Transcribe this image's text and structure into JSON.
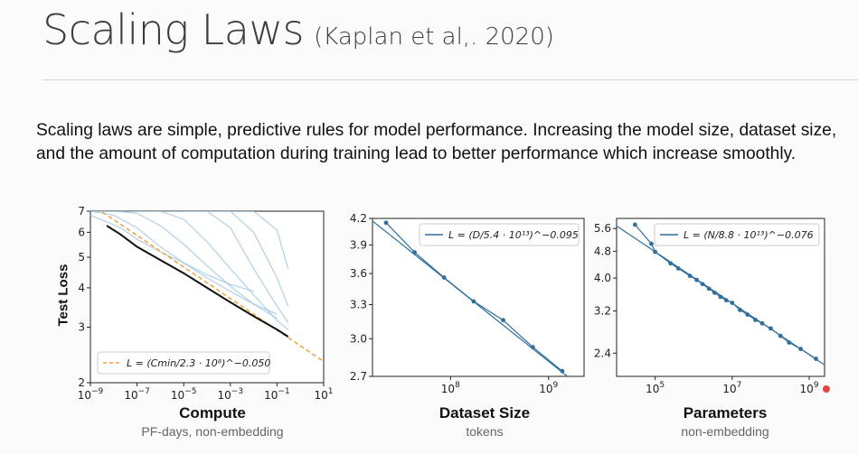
{
  "slide": {
    "title": "Scaling Laws",
    "citation": "(Kaplan et al,. 2020)",
    "intro": "Scaling laws are simple, predictive rules for model performance. Increasing the model size, dataset size, and the amount of computation during training lead to better performance which increase smoothly."
  },
  "colors": {
    "blue": "#2f6f9a",
    "light_blue": "#9ec5e2",
    "orange": "#f2a33a",
    "black": "#111111"
  },
  "chart_data": [
    {
      "type": "line",
      "title": "",
      "xlabel": "Compute",
      "xlabel_sub": "PF-days, non-embedding",
      "ylabel": "Test Loss",
      "x_scale": "log",
      "y_scale": "log",
      "xlim": [
        1e-09,
        10
      ],
      "ylim": [
        2,
        7
      ],
      "x_ticks": [
        1e-09,
        1e-07,
        1e-05,
        0.001,
        0.1,
        10
      ],
      "x_tick_labels": [
        {
          "base": "10",
          "exp": "−9"
        },
        {
          "base": "10",
          "exp": "−7"
        },
        {
          "base": "10",
          "exp": "−5"
        },
        {
          "base": "10",
          "exp": "−3"
        },
        {
          "base": "10",
          "exp": "−1"
        },
        {
          "base": "10",
          "exp": "1"
        }
      ],
      "y_ticks": [
        2,
        3,
        4,
        5,
        6,
        7
      ],
      "y_tick_labels": [
        "2",
        "3",
        "4",
        "5",
        "6",
        "7"
      ],
      "legend": {
        "label": "L = (Cmin/2.3 · 10⁸)^−0.050",
        "position": "bottom-left",
        "style": "dashed",
        "color": "#f2a33a"
      },
      "fit": {
        "coef": 230000000.0,
        "exp": -0.05
      },
      "frontier": {
        "x": [
          5e-09,
          2e-08,
          1e-07,
          1e-06,
          1e-05,
          0.0001,
          0.001,
          0.01,
          0.1,
          0.3
        ],
        "y": [
          6.3,
          5.9,
          5.4,
          4.9,
          4.45,
          4.0,
          3.6,
          3.25,
          2.95,
          2.8
        ]
      },
      "series": [
        {
          "x": [
            1e-09,
            2e-08,
            1e-07,
            1e-06,
            1e-05,
            0.0001,
            0.001,
            0.01
          ],
          "y": [
            6.8,
            6.2,
            5.7,
            5.2,
            4.8,
            4.4,
            4.1,
            3.9
          ]
        },
        {
          "x": [
            1e-09,
            1e-08,
            1e-07,
            1e-06,
            1e-05,
            0.0001,
            0.001,
            0.01,
            0.1
          ],
          "y": [
            7.0,
            6.8,
            6.2,
            5.4,
            4.8,
            4.3,
            3.9,
            3.55,
            3.3
          ]
        },
        {
          "x": [
            1e-09,
            1e-08,
            1e-07,
            1e-06,
            1e-05,
            0.0001,
            0.001,
            0.01,
            0.1
          ],
          "y": [
            7.0,
            7.0,
            6.9,
            6.3,
            5.5,
            4.7,
            4.05,
            3.55,
            3.2
          ]
        },
        {
          "x": [
            1e-09,
            1e-08,
            1e-07,
            1e-06,
            1e-05,
            0.0001,
            0.001,
            0.01,
            0.1,
            0.3
          ],
          "y": [
            7.0,
            7.0,
            7.0,
            7.0,
            6.6,
            5.6,
            4.6,
            3.8,
            3.15,
            2.95
          ]
        },
        {
          "x": [
            1e-07,
            1e-06,
            1e-05,
            0.0001,
            0.001,
            0.01,
            0.1,
            0.3
          ],
          "y": [
            7.0,
            7.0,
            7.0,
            7.0,
            6.2,
            4.6,
            3.5,
            3.1
          ]
        },
        {
          "x": [
            1e-05,
            0.0001,
            0.001,
            0.01,
            0.1,
            0.3
          ],
          "y": [
            7.0,
            7.0,
            7.0,
            6.0,
            4.3,
            3.5
          ]
        },
        {
          "x": [
            0.0001,
            0.001,
            0.01,
            0.1,
            0.3
          ],
          "y": [
            7.0,
            7.0,
            7.0,
            6.1,
            4.6
          ]
        }
      ]
    },
    {
      "type": "line",
      "title": "",
      "xlabel": "Dataset Size",
      "xlabel_sub": "tokens",
      "ylabel": "",
      "x_scale": "log",
      "y_scale": "log",
      "xlim": [
        16000000.0,
        2300000000.0
      ],
      "ylim": [
        2.7,
        4.2
      ],
      "x_ticks": [
        100000000.0,
        1000000000.0
      ],
      "x_tick_labels": [
        {
          "base": "10",
          "exp": "8"
        },
        {
          "base": "10",
          "exp": "9"
        }
      ],
      "y_ticks": [
        2.7,
        3.0,
        3.3,
        3.6,
        3.9,
        4.2
      ],
      "y_tick_labels": [
        "2.7",
        "3.0",
        "3.3",
        "3.6",
        "3.9",
        "4.2"
      ],
      "legend": {
        "label": "L = (D/5.4 · 10¹³)^−0.095",
        "position": "top-right",
        "style": "solid",
        "color": "#2f6f9a"
      },
      "fit": {
        "coef": 54000000000000.0,
        "exp": -0.095
      },
      "points": {
        "x": [
          22000000.0,
          43000000.0,
          86000000.0,
          172000000.0,
          344000000.0,
          690000000.0,
          1380000000.0
        ],
        "y": [
          4.15,
          3.82,
          3.56,
          3.33,
          3.16,
          2.93,
          2.74
        ]
      }
    },
    {
      "type": "line",
      "title": "",
      "xlabel": "Parameters",
      "xlabel_sub": "non-embedding",
      "ylabel": "",
      "x_scale": "log",
      "y_scale": "log",
      "xlim": [
        10000.0,
        2500000000.0
      ],
      "ylim": [
        2.05,
        6.0
      ],
      "x_ticks": [
        100000.0,
        10000000.0,
        1000000000.0
      ],
      "x_tick_labels": [
        {
          "base": "10",
          "exp": "5"
        },
        {
          "base": "10",
          "exp": "7"
        },
        {
          "base": "10",
          "exp": "9"
        }
      ],
      "y_ticks": [
        2.4,
        3.2,
        4.0,
        4.8,
        5.6
      ],
      "y_tick_labels": [
        "2.4",
        "3.2",
        "4.0",
        "4.8",
        "5.6"
      ],
      "legend": {
        "label": "L = (N/8.8 · 10¹³)^−0.076",
        "position": "top-right",
        "style": "solid",
        "color": "#2f6f9a"
      },
      "fit": {
        "coef": 88000000000000.0,
        "exp": -0.076
      },
      "points": {
        "x": [
          30000.0,
          80000.0,
          100000.0,
          250000.0,
          400000.0,
          800000.0,
          1200000.0,
          1700000.0,
          2500000.0,
          3500000.0,
          5000000.0,
          7000000.0,
          10000000.0,
          16000000.0,
          25000000.0,
          40000000.0,
          60000000.0,
          100000000.0,
          180000000.0,
          300000000.0,
          600000000.0,
          1500000000.0
        ],
        "y": [
          5.75,
          5.05,
          4.78,
          4.42,
          4.27,
          4.06,
          3.95,
          3.84,
          3.72,
          3.62,
          3.52,
          3.44,
          3.38,
          3.22,
          3.12,
          3.01,
          2.94,
          2.84,
          2.7,
          2.58,
          2.47,
          2.31
        ]
      }
    }
  ]
}
